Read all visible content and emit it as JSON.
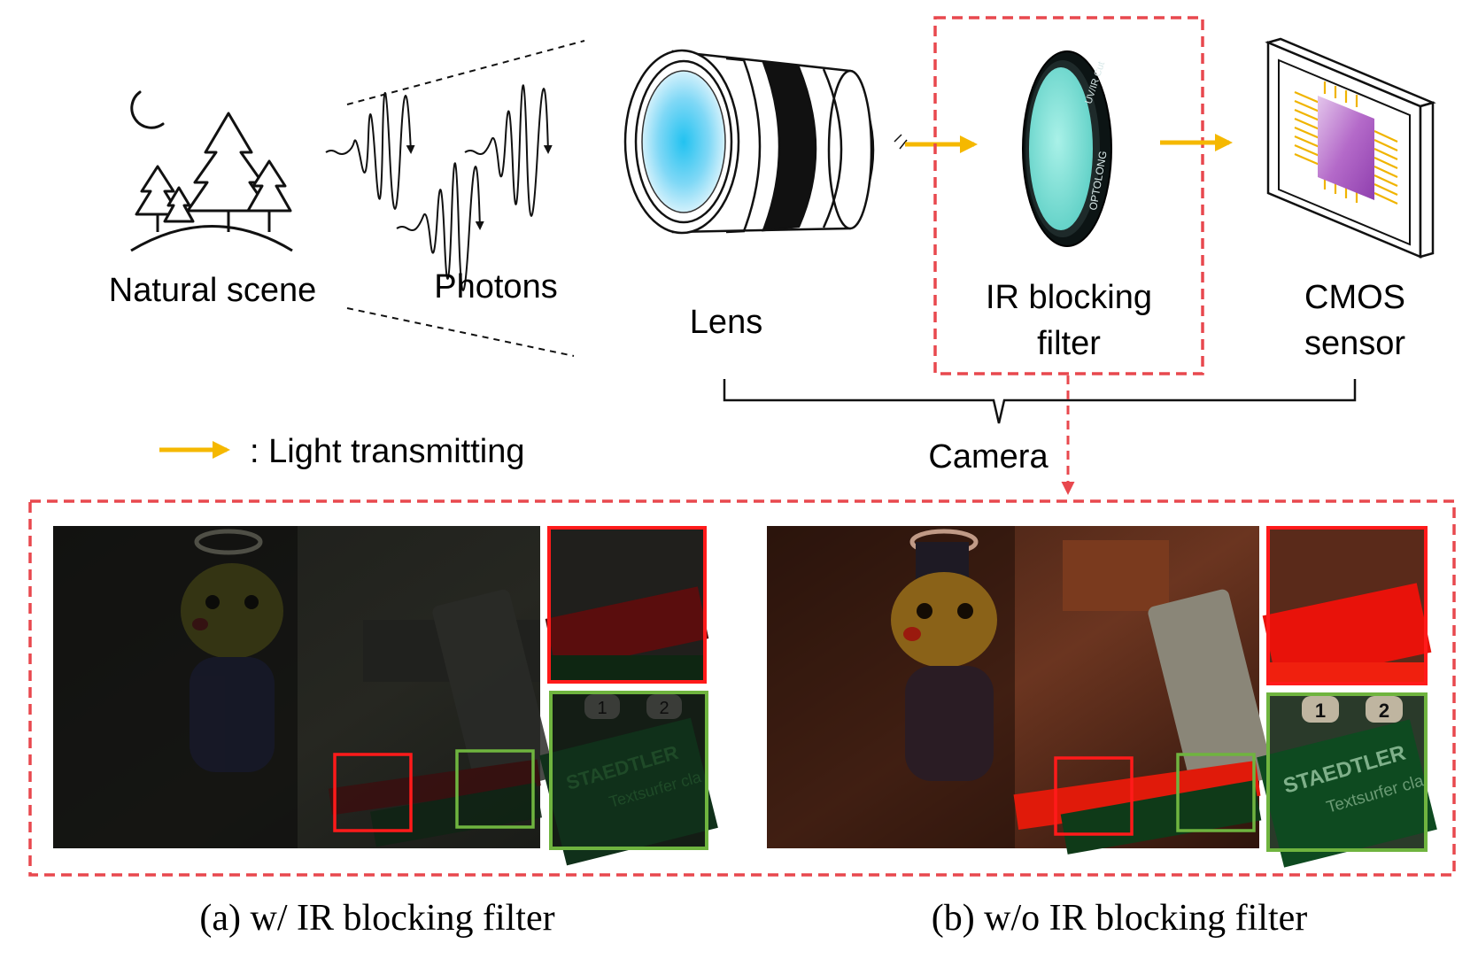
{
  "labels": {
    "natural_scene": "Natural scene",
    "photons": "Photons",
    "lens": "Lens",
    "ir_filter_line1": "IR blocking",
    "ir_filter_line2": "filter",
    "cmos_line1": "CMOS",
    "cmos_line2": "sensor",
    "camera": "Camera",
    "legend": ": Light transmitting",
    "filter_ring_brand": "OPTOLONG",
    "filter_ring_type": "UV/IR Cut"
  },
  "captions": {
    "a": "(a) w/ IR blocking filter",
    "b": "(b) w/o IR blocking filter"
  },
  "panels": {
    "a": {
      "crop_text_1": "STAEDTLER",
      "crop_text_2": "Textsurfer cla",
      "keys": [
        "1",
        "2"
      ]
    },
    "b": {
      "crop_text_1": "STAEDTLER",
      "crop_text_2": "Textsurfer cla",
      "keys": [
        "1",
        "2"
      ]
    }
  },
  "colors": {
    "arrow": "#f5b800",
    "highlight_dashed": "#e8484e",
    "crop_red": "#ff1a1a",
    "crop_green": "#6fb43f",
    "lens_glass": "#38c6f0",
    "filter_glass": "#7fe6dc",
    "sensor_die": "#b05cc4"
  }
}
